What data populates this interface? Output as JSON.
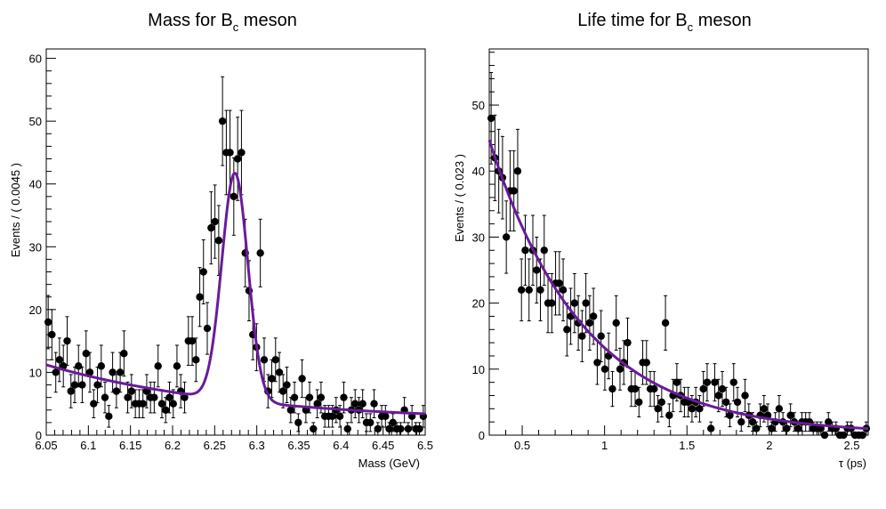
{
  "chart_data": [
    {
      "type": "scatter",
      "title": "Mass for B_c meson",
      "title_main": "Mass for B",
      "title_sub": "c",
      "title_rest": " meson",
      "xlabel": "Mass (GeV)",
      "ylabel": "Events / ( 0.0045 )",
      "xlim": [
        6.05,
        6.5
      ],
      "ylim": [
        0,
        61.5
      ],
      "xticks": [
        6.05,
        6.1,
        6.15,
        6.2,
        6.25,
        6.3,
        6.35,
        6.4,
        6.45,
        6.5
      ],
      "yticks": [
        0,
        10,
        20,
        30,
        40,
        50,
        60
      ],
      "xtick_labels": [
        "6.05",
        "6.1",
        "6.15",
        "6.2",
        "6.25",
        "6.3",
        "6.35",
        "6.4",
        "6.45",
        "6.5"
      ],
      "ytick_labels": [
        "0",
        "10",
        "20",
        "30",
        "40",
        "50",
        "60"
      ],
      "marker_color": "#000000",
      "fit_color": "#6a1b9a",
      "series": [
        {
          "x": [
            6.0523,
            6.0567,
            6.0613,
            6.0657,
            6.0703,
            6.0748,
            6.0793,
            6.0838,
            6.0883,
            6.0927,
            6.0973,
            6.1018,
            6.1063,
            6.1108,
            6.1153,
            6.1197,
            6.1243,
            6.1288,
            6.1333,
            6.1378,
            6.1423,
            6.1467,
            6.1512,
            6.1558,
            6.1603,
            6.1648,
            6.1693,
            6.1738,
            6.1782,
            6.1828,
            6.1873,
            6.1918,
            6.1963,
            6.2008,
            6.2052,
            6.2097,
            6.2143,
            6.2188,
            6.2233,
            6.2278,
            6.2323,
            6.2367,
            6.2412,
            6.2458,
            6.2503,
            6.2548,
            6.2593,
            6.2638,
            6.2682,
            6.2727,
            6.2773,
            6.2818,
            6.2863,
            6.2908,
            6.2953,
            6.2997,
            6.3042,
            6.3088,
            6.3133,
            6.3178,
            6.3223,
            6.3268,
            6.3312,
            6.3357,
            6.3403,
            6.3448,
            6.3493,
            6.3538,
            6.3583,
            6.3627,
            6.3672,
            6.3718,
            6.3763,
            6.3808,
            6.3853,
            6.3898,
            6.3942,
            6.3987,
            6.4033,
            6.4078,
            6.4123,
            6.4168,
            6.4213,
            6.4257,
            6.4302,
            6.4348,
            6.4393,
            6.4438,
            6.4483,
            6.4528,
            6.4572,
            6.4617,
            6.4663,
            6.4708,
            6.4753,
            6.4798,
            6.4843,
            6.4888,
            6.4932,
            6.4977
          ],
          "y": [
            18,
            16,
            10,
            12,
            11,
            15,
            7,
            8,
            11,
            8,
            13,
            10,
            5,
            8,
            11,
            6,
            3,
            10,
            7,
            10,
            13,
            6,
            7,
            5,
            5,
            5,
            7,
            6,
            6,
            11,
            5,
            4,
            6,
            5,
            11,
            7,
            6,
            15,
            15,
            12,
            22,
            26,
            17,
            33,
            34,
            31,
            50,
            45,
            45,
            38,
            44,
            45,
            29,
            23,
            16,
            14,
            29,
            12,
            7,
            9,
            12,
            10,
            7,
            8,
            4,
            6,
            2,
            9,
            4,
            6,
            1,
            5,
            6,
            3,
            3,
            3,
            4,
            3,
            6,
            1,
            4,
            5,
            4,
            5,
            2,
            2,
            5,
            1,
            3,
            3,
            1,
            2,
            1,
            1,
            4,
            1,
            3,
            1,
            1,
            3
          ]
        }
      ]
    },
    {
      "type": "scatter",
      "title": "Life time for B_c meson",
      "title_main": "Life time for B",
      "title_sub": "c",
      "title_rest": " meson",
      "xlabel": "τ (ps)",
      "ylabel": "Events / ( 0.023 )",
      "xlim": [
        0.3,
        2.6
      ],
      "ylim": [
        0,
        58.5
      ],
      "xticks": [
        0.5,
        1,
        1.5,
        2,
        2.5
      ],
      "yticks": [
        0,
        10,
        20,
        30,
        40,
        50
      ],
      "xtick_labels": [
        "0.5",
        "1",
        "1.5",
        "2",
        "2.5"
      ],
      "ytick_labels": [
        "0",
        "10",
        "20",
        "30",
        "40",
        "50"
      ],
      "marker_color": "#000000",
      "fit_color": "#6a1b9a",
      "series": [
        {
          "x": [
            0.3115,
            0.3345,
            0.3575,
            0.3805,
            0.4035,
            0.4265,
            0.4495,
            0.4725,
            0.4955,
            0.5185,
            0.5415,
            0.5645,
            0.5875,
            0.6105,
            0.6335,
            0.6565,
            0.6795,
            0.7025,
            0.7255,
            0.7485,
            0.7715,
            0.7945,
            0.8175,
            0.8405,
            0.8635,
            0.8865,
            0.9095,
            0.9325,
            0.9555,
            0.9785,
            1.0015,
            1.0245,
            1.0475,
            1.0705,
            1.0935,
            1.1165,
            1.1395,
            1.1625,
            1.1855,
            1.2085,
            1.2315,
            1.2545,
            1.2775,
            1.3005,
            1.3235,
            1.3465,
            1.3695,
            1.3925,
            1.4155,
            1.4385,
            1.4615,
            1.4845,
            1.5075,
            1.5305,
            1.5535,
            1.5765,
            1.5995,
            1.6225,
            1.6455,
            1.6685,
            1.6915,
            1.7145,
            1.7375,
            1.7605,
            1.7835,
            1.8065,
            1.8295,
            1.8525,
            1.8755,
            1.8985,
            1.9215,
            1.9445,
            1.9675,
            1.9905,
            2.0135,
            2.0365,
            2.0595,
            2.0825,
            2.1055,
            2.1285,
            2.1515,
            2.1745,
            2.1975,
            2.2205,
            2.2435,
            2.2665,
            2.2895,
            2.3125,
            2.3355,
            2.3585,
            2.3815,
            2.4045,
            2.4275,
            2.4505,
            2.4735,
            2.4965,
            2.5195,
            2.5425,
            2.5655,
            2.5885
          ],
          "y": [
            48,
            42,
            40,
            39,
            30,
            37,
            37,
            40,
            22,
            28,
            22,
            28,
            25,
            22,
            28,
            20,
            20,
            23,
            23,
            22,
            16,
            18,
            20,
            17,
            15,
            20,
            17,
            18,
            11,
            15,
            10,
            12,
            7,
            17,
            10,
            11,
            14,
            7,
            7,
            5,
            11,
            11,
            7,
            7,
            4,
            5,
            17,
            3,
            6,
            8,
            6,
            5,
            5,
            4,
            5,
            4,
            7,
            8,
            1,
            8,
            6,
            7,
            5,
            3,
            8,
            5,
            2,
            6,
            3,
            2,
            1,
            3,
            4,
            3,
            1,
            2,
            4,
            2,
            1,
            3,
            2,
            1,
            2,
            2,
            2,
            1,
            1,
            1,
            0,
            2,
            1,
            1,
            0,
            0,
            1,
            1,
            0,
            0,
            0,
            1
          ]
        }
      ]
    }
  ]
}
